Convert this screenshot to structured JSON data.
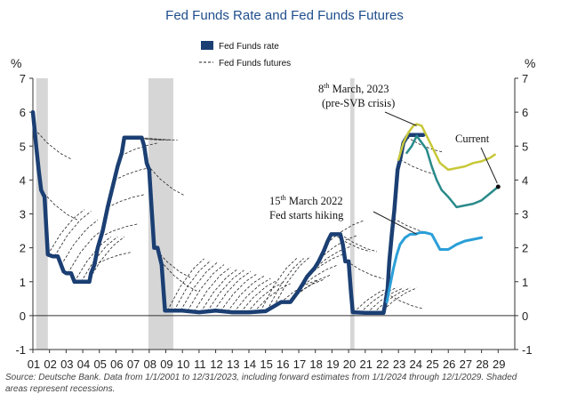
{
  "chart_data": {
    "type": "line",
    "title": "Fed Funds Rate and Fed Funds Futures",
    "ylabel_left": "%",
    "ylabel_right": "%",
    "ylim": [
      -1,
      7
    ],
    "yticks": [
      -1,
      0,
      1,
      2,
      3,
      4,
      5,
      6,
      7
    ],
    "xlim": [
      2001,
      2030
    ],
    "xtick_labels": [
      "01",
      "02",
      "03",
      "04",
      "05",
      "06",
      "07",
      "08",
      "09",
      "10",
      "11",
      "12",
      "13",
      "14",
      "15",
      "16",
      "17",
      "18",
      "19",
      "20",
      "21",
      "22",
      "23",
      "24",
      "25",
      "26",
      "27",
      "28",
      "29"
    ],
    "legend_position": "top-left",
    "recessions": [
      [
        2001.2,
        2001.9
      ],
      [
        2007.95,
        2009.45
      ],
      [
        2020.1,
        2020.35
      ]
    ],
    "series": [
      {
        "name": "Fed Funds rate",
        "style": "solid",
        "color": "#1b3f73",
        "x": [
          2001.0,
          2001.1,
          2001.2,
          2001.35,
          2001.5,
          2001.7,
          2001.9,
          2002.2,
          2002.5,
          2002.85,
          2003.0,
          2003.3,
          2003.5,
          2003.8,
          2004.1,
          2004.4,
          2004.5,
          2004.7,
          2004.9,
          2005.2,
          2005.5,
          2005.8,
          2006.1,
          2006.35,
          2006.5,
          2006.8,
          2007.2,
          2007.55,
          2007.7,
          2007.85,
          2008.0,
          2008.1,
          2008.3,
          2008.5,
          2008.75,
          2008.9,
          2008.95,
          2009.0,
          2010.0,
          2011.0,
          2012.0,
          2013.0,
          2014.0,
          2015.0,
          2015.95,
          2016.5,
          2016.95,
          2017.2,
          2017.5,
          2017.95,
          2018.2,
          2018.5,
          2018.75,
          2018.95,
          2019.5,
          2019.65,
          2019.8,
          2020.0,
          2020.15,
          2020.25,
          2021.0,
          2022.1,
          2022.2,
          2022.35,
          2022.45,
          2022.6,
          2022.75,
          2022.95,
          2023.1,
          2023.3,
          2023.55,
          2023.7,
          2024.5
        ],
        "y": [
          6.0,
          5.5,
          5.0,
          4.3,
          3.7,
          3.5,
          1.8,
          1.75,
          1.75,
          1.3,
          1.25,
          1.25,
          1.0,
          1.0,
          1.0,
          1.0,
          1.25,
          1.5,
          2.0,
          2.5,
          3.2,
          3.8,
          4.4,
          4.8,
          5.25,
          5.25,
          5.25,
          5.25,
          5.0,
          4.5,
          4.3,
          3.5,
          2.0,
          2.0,
          1.5,
          0.5,
          0.15,
          0.15,
          0.15,
          0.1,
          0.15,
          0.1,
          0.1,
          0.13,
          0.4,
          0.4,
          0.7,
          0.9,
          1.15,
          1.4,
          1.6,
          1.9,
          2.2,
          2.4,
          2.4,
          2.1,
          1.6,
          1.6,
          0.65,
          0.1,
          0.08,
          0.08,
          0.33,
          0.8,
          1.6,
          2.4,
          3.1,
          4.3,
          4.6,
          5.1,
          5.3,
          5.33,
          5.33
        ]
      },
      {
        "name": "Fed Funds futures",
        "style": "dashed",
        "color": "#222222",
        "x": [],
        "y": []
      },
      {
        "name": "",
        "style": "solid",
        "color": "#c8c83a",
        "x": [
          2023.0,
          2023.3,
          2023.6,
          2023.9,
          2024.1,
          2024.4,
          2024.7,
          2025.0,
          2025.5,
          2026.0,
          2026.5,
          2027.0,
          2027.5,
          2028.0,
          2028.5,
          2028.8
        ],
        "y": [
          4.6,
          5.1,
          5.4,
          5.6,
          5.65,
          5.6,
          5.3,
          5.0,
          4.5,
          4.3,
          4.35,
          4.4,
          4.5,
          4.55,
          4.65,
          4.75
        ]
      },
      {
        "name": "",
        "style": "solid",
        "color": "#2a8a8a",
        "x": [
          2023.5,
          2023.8,
          2024.1,
          2024.4,
          2024.7,
          2025.0,
          2025.3,
          2025.6,
          2026.0,
          2026.5,
          2027.0,
          2027.5,
          2028.0,
          2028.5,
          2029.0
        ],
        "y": [
          4.8,
          5.0,
          5.3,
          5.1,
          4.9,
          4.4,
          4.0,
          3.7,
          3.5,
          3.2,
          3.25,
          3.3,
          3.4,
          3.6,
          3.8
        ]
      },
      {
        "name": "",
        "style": "solid",
        "color": "#2a9fd8",
        "x": [
          2022.3,
          2022.5,
          2022.7,
          2022.9,
          2023.1,
          2023.4,
          2023.7,
          2024.0,
          2024.3,
          2024.6,
          2025.0,
          2025.5,
          2026.0,
          2026.5,
          2027.0,
          2027.5,
          2028.0
        ],
        "y": [
          0.4,
          0.9,
          1.4,
          1.8,
          2.1,
          2.3,
          2.4,
          2.4,
          2.45,
          2.45,
          2.4,
          1.95,
          1.95,
          2.1,
          2.2,
          2.25,
          2.3
        ]
      }
    ],
    "annotations": [
      {
        "text_main": "8",
        "text_sup": "th",
        "text_rest": " March, 2023",
        "line2": "(pre-SVB crisis)",
        "point": [
          2024.2,
          5.6
        ]
      },
      {
        "text_main": "15",
        "text_sup": "th",
        "text_rest": " March 2022",
        "line2": "Fed starts hiking",
        "point": [
          2024.1,
          2.35
        ]
      },
      {
        "text_main": "Current",
        "text_sup": "",
        "text_rest": "",
        "line2": "",
        "point": [
          2029.0,
          3.8
        ]
      }
    ],
    "source": "Source: Deutsche Bank. Data from 1/1/2001 to 12/31/2023, including forward estimates from 1/1/2024 through 12/1/2029. Shaded areas represent recessions."
  }
}
